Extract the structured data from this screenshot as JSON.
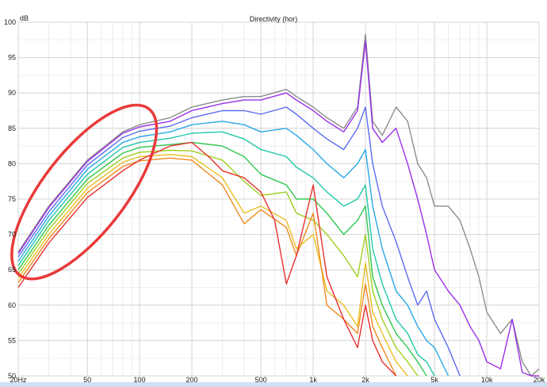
{
  "chart_data": {
    "type": "line",
    "title": "Directivity (hor)",
    "ylabel": "dB",
    "xlabel": "",
    "x_scale": "log",
    "xlim": [
      20,
      20000
    ],
    "ylim": [
      50,
      100
    ],
    "grid": true,
    "x_ticks": [
      {
        "v": 20,
        "label": "20Hz"
      },
      {
        "v": 50,
        "label": "50"
      },
      {
        "v": 100,
        "label": "100"
      },
      {
        "v": 200,
        "label": "200"
      },
      {
        "v": 500,
        "label": "500"
      },
      {
        "v": 1000,
        "label": "1k"
      },
      {
        "v": 2000,
        "label": "2k"
      },
      {
        "v": 5000,
        "label": "5k"
      },
      {
        "v": 10000,
        "label": "10k"
      },
      {
        "v": 20000,
        "label": "20k"
      }
    ],
    "y_ticks": [
      100,
      95,
      90,
      85,
      80,
      75,
      70,
      65,
      60,
      55,
      50
    ],
    "annotation": {
      "type": "ellipse",
      "color": "#e83a3a",
      "x_range": [
        20,
        115
      ],
      "y_range": [
        64,
        88
      ]
    },
    "series": [
      {
        "color": "#8c8c8c",
        "x": [
          20,
          30,
          50,
          80,
          100,
          150,
          200,
          300,
          400,
          500,
          700,
          800,
          1000,
          1200,
          1500,
          1800,
          2000,
          2200,
          2500,
          3000,
          3500,
          4000,
          4500,
          5000,
          6000,
          7000,
          8000,
          9000,
          10000,
          12000,
          14000,
          16000,
          18000,
          20000
        ],
        "y": [
          67.5,
          74,
          80.5,
          84.5,
          85.5,
          86.5,
          88,
          89,
          89.5,
          89.5,
          90.5,
          89.5,
          88,
          86.5,
          85,
          88,
          98.3,
          86,
          84,
          88,
          86,
          80,
          78,
          74,
          74,
          72,
          68,
          64,
          59,
          56,
          58,
          52,
          50,
          51
        ]
      },
      {
        "color": "#9b30e8",
        "x": [
          20,
          30,
          50,
          80,
          100,
          150,
          200,
          300,
          400,
          500,
          700,
          800,
          1000,
          1200,
          1500,
          1800,
          2000,
          2200,
          2500,
          3000,
          3500,
          4000,
          4500,
          5000,
          6000,
          7000,
          8000,
          9000,
          10000,
          12000,
          14000,
          16000,
          18000,
          20000
        ],
        "y": [
          67.3,
          73.8,
          80.3,
          84.3,
          85.2,
          86,
          87.5,
          88.5,
          89,
          89,
          90,
          89,
          87.5,
          86,
          84.5,
          87.5,
          97.3,
          85,
          83,
          85,
          80,
          75,
          70,
          65,
          62,
          60,
          57,
          55,
          52,
          51,
          58,
          50.5,
          50,
          50
        ]
      },
      {
        "color": "#5a6cf0",
        "x": [
          20,
          30,
          50,
          80,
          100,
          150,
          200,
          300,
          400,
          500,
          700,
          800,
          1000,
          1200,
          1500,
          1800,
          2000,
          2200,
          2500,
          3000,
          3500,
          4000,
          4500,
          5000,
          6000,
          7000
        ],
        "y": [
          66.8,
          73.2,
          79.8,
          83.7,
          84.6,
          85.3,
          86.5,
          87.5,
          87.5,
          87,
          88,
          87,
          85,
          83.5,
          82,
          85,
          88,
          80,
          74,
          69,
          64,
          60,
          62,
          58,
          54,
          50
        ]
      },
      {
        "color": "#2aa8e8",
        "x": [
          20,
          30,
          50,
          80,
          100,
          150,
          200,
          300,
          400,
          500,
          700,
          800,
          1000,
          1200,
          1500,
          1800,
          2000,
          2200,
          2500,
          3000,
          3500,
          4000,
          4500,
          5000,
          6000
        ],
        "y": [
          66.2,
          72.6,
          79.2,
          83,
          83.8,
          84.5,
          85.5,
          86,
          85.5,
          84.5,
          85,
          84,
          82,
          80,
          78,
          80,
          82,
          74,
          68,
          62,
          60,
          57,
          55,
          54,
          50
        ]
      },
      {
        "color": "#20c8a8",
        "x": [
          20,
          30,
          50,
          80,
          100,
          150,
          200,
          300,
          400,
          500,
          700,
          800,
          1000,
          1200,
          1500,
          1800,
          2000,
          2200,
          2500,
          3000,
          3500,
          4000,
          4500,
          5000
        ],
        "y": [
          65.6,
          72,
          78.5,
          82.3,
          83,
          83.6,
          84.3,
          84.5,
          83.5,
          82,
          81,
          79.5,
          78,
          76,
          74,
          75,
          77,
          68,
          63,
          58,
          56,
          53,
          52,
          50
        ]
      },
      {
        "color": "#30c850",
        "x": [
          20,
          30,
          50,
          80,
          100,
          150,
          200,
          300,
          400,
          500,
          700,
          800,
          1000,
          1200,
          1500,
          1800,
          2000,
          2200,
          2500,
          3000,
          3500,
          4000,
          4500
        ],
        "y": [
          65,
          71.3,
          77.8,
          81.5,
          82.3,
          82.7,
          83,
          82.5,
          81,
          78.5,
          77,
          75,
          75,
          73,
          70,
          72,
          74,
          64,
          60,
          56,
          54,
          52,
          50
        ]
      },
      {
        "color": "#a0d020",
        "x": [
          20,
          30,
          50,
          80,
          100,
          150,
          200,
          300,
          400,
          500,
          700,
          800,
          1000,
          1200,
          1500,
          1800,
          2000,
          2200,
          2500,
          3000,
          3500,
          4000
        ],
        "y": [
          64.4,
          70.7,
          77.2,
          80.8,
          81.6,
          81.9,
          81.8,
          80.5,
          77.5,
          75.5,
          76,
          73,
          72,
          70,
          67,
          64,
          70,
          62,
          58,
          54,
          52,
          50
        ]
      },
      {
        "color": "#e8c020",
        "x": [
          20,
          30,
          50,
          80,
          100,
          150,
          200,
          300,
          400,
          500,
          700,
          800,
          1000,
          1200,
          1500,
          1800,
          2000,
          2200,
          2500,
          3000,
          3500
        ],
        "y": [
          63.8,
          70,
          76.5,
          80.2,
          81,
          81.3,
          81,
          78,
          73,
          74,
          72,
          68,
          70,
          62,
          60,
          57,
          66,
          59,
          56,
          52,
          50
        ]
      },
      {
        "color": "#f08a20",
        "x": [
          20,
          30,
          50,
          80,
          100,
          150,
          200,
          300,
          400,
          500,
          700,
          800,
          1000,
          1200,
          1500,
          1800,
          2000,
          2200,
          2500,
          3000
        ],
        "y": [
          63.2,
          69.4,
          75.9,
          79.6,
          80.4,
          80.8,
          80.5,
          77,
          71.5,
          73.5,
          71,
          67,
          73,
          60,
          58,
          56,
          63,
          57,
          54,
          50
        ]
      },
      {
        "color": "#e83030",
        "x": [
          20,
          30,
          50,
          80,
          100,
          150,
          200,
          250,
          300,
          400,
          500,
          600,
          700,
          800,
          1000,
          1200,
          1500,
          1800,
          2000,
          2200,
          2500,
          3000
        ],
        "y": [
          62.5,
          68.8,
          75.2,
          79,
          80.5,
          82.5,
          83,
          81,
          79,
          78,
          76,
          72,
          63,
          67,
          77,
          64,
          58,
          54,
          60,
          55,
          52,
          50
        ]
      }
    ]
  }
}
